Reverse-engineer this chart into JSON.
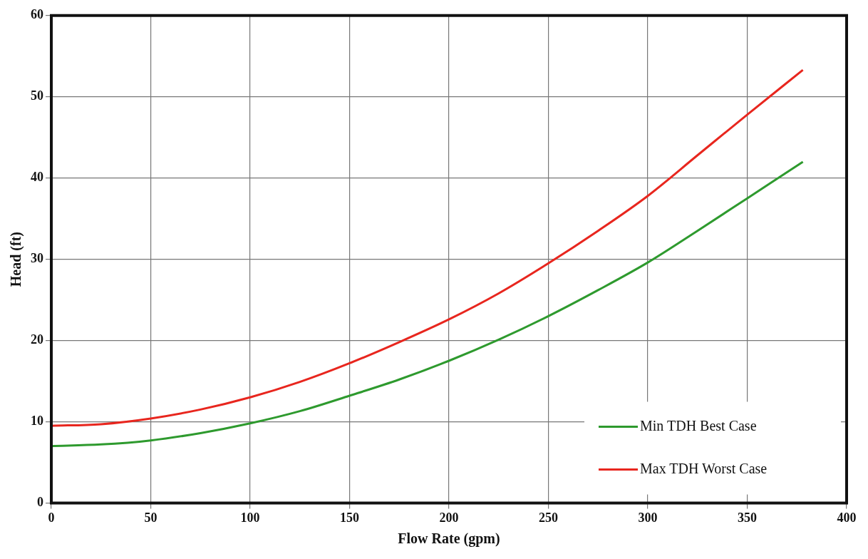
{
  "chart_data": {
    "type": "line",
    "xlabel": "Flow Rate (gpm)",
    "ylabel": "Head (ft)",
    "xlim": [
      0,
      400
    ],
    "xticks": [
      0,
      50,
      100,
      150,
      200,
      250,
      300,
      350,
      400
    ],
    "ylim": [
      0,
      60
    ],
    "yticks": [
      0,
      10,
      20,
      30,
      40,
      50,
      60
    ],
    "grid": true,
    "legend": "bottom right",
    "marker": "none",
    "line_style": "solid",
    "series": [
      {
        "name": "Min TDH Best Case",
        "color": "#2e9a2e",
        "x": [
          0,
          25,
          50,
          75,
          100,
          125,
          150,
          175,
          200,
          225,
          250,
          275,
          300,
          325,
          350,
          378
        ],
        "values": [
          7,
          7.2,
          7.7,
          8.6,
          9.8,
          11.3,
          13.2,
          15.2,
          17.5,
          20.1,
          23,
          26.2,
          29.6,
          33.5,
          37.5,
          42
        ]
      },
      {
        "name": "Max TDH Worst Case",
        "color": "#e8261e",
        "x": [
          0,
          25,
          50,
          75,
          100,
          125,
          150,
          175,
          200,
          225,
          250,
          275,
          300,
          325,
          350,
          378
        ],
        "values": [
          9.5,
          9.7,
          10.4,
          11.5,
          13,
          14.9,
          17.2,
          19.8,
          22.6,
          25.8,
          29.5,
          33.5,
          37.8,
          42.8,
          47.8,
          53.3
        ]
      }
    ]
  }
}
